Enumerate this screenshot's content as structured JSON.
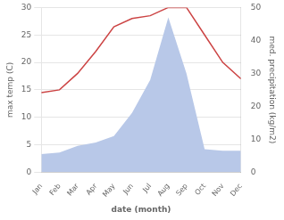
{
  "chart_data": {
    "type": "line",
    "categories": [
      "Jan",
      "Feb",
      "Mar",
      "Apr",
      "May",
      "Jun",
      "Jul",
      "Aug",
      "Sep",
      "Oct",
      "Nov",
      "Dec"
    ],
    "series": [
      {
        "type": "area",
        "color": "#b8c8e8",
        "axis": "y2",
        "values": [
          5.5,
          6.0,
          8.0,
          9.0,
          11.0,
          18.0,
          28.0,
          47.0,
          30.0,
          7.0,
          6.5,
          6.5
        ]
      },
      {
        "type": "line",
        "color": "#cc4444",
        "values": [
          14.5,
          15.0,
          18.0,
          22.0,
          26.5,
          28.0,
          28.5,
          30.0,
          30.0,
          25.0,
          20.0,
          17.0
        ]
      }
    ],
    "x_label": "date (month)",
    "y_label": "max temp (C)",
    "y2_label": "med. precipitation (kg/m2)",
    "ylim": [
      0,
      30
    ],
    "yticks": [
      0,
      5,
      10,
      15,
      20,
      25,
      30
    ],
    "y2lim": [
      0,
      50
    ],
    "y2ticks": [
      0,
      10,
      20,
      30,
      40,
      50
    ],
    "grid": true
  }
}
